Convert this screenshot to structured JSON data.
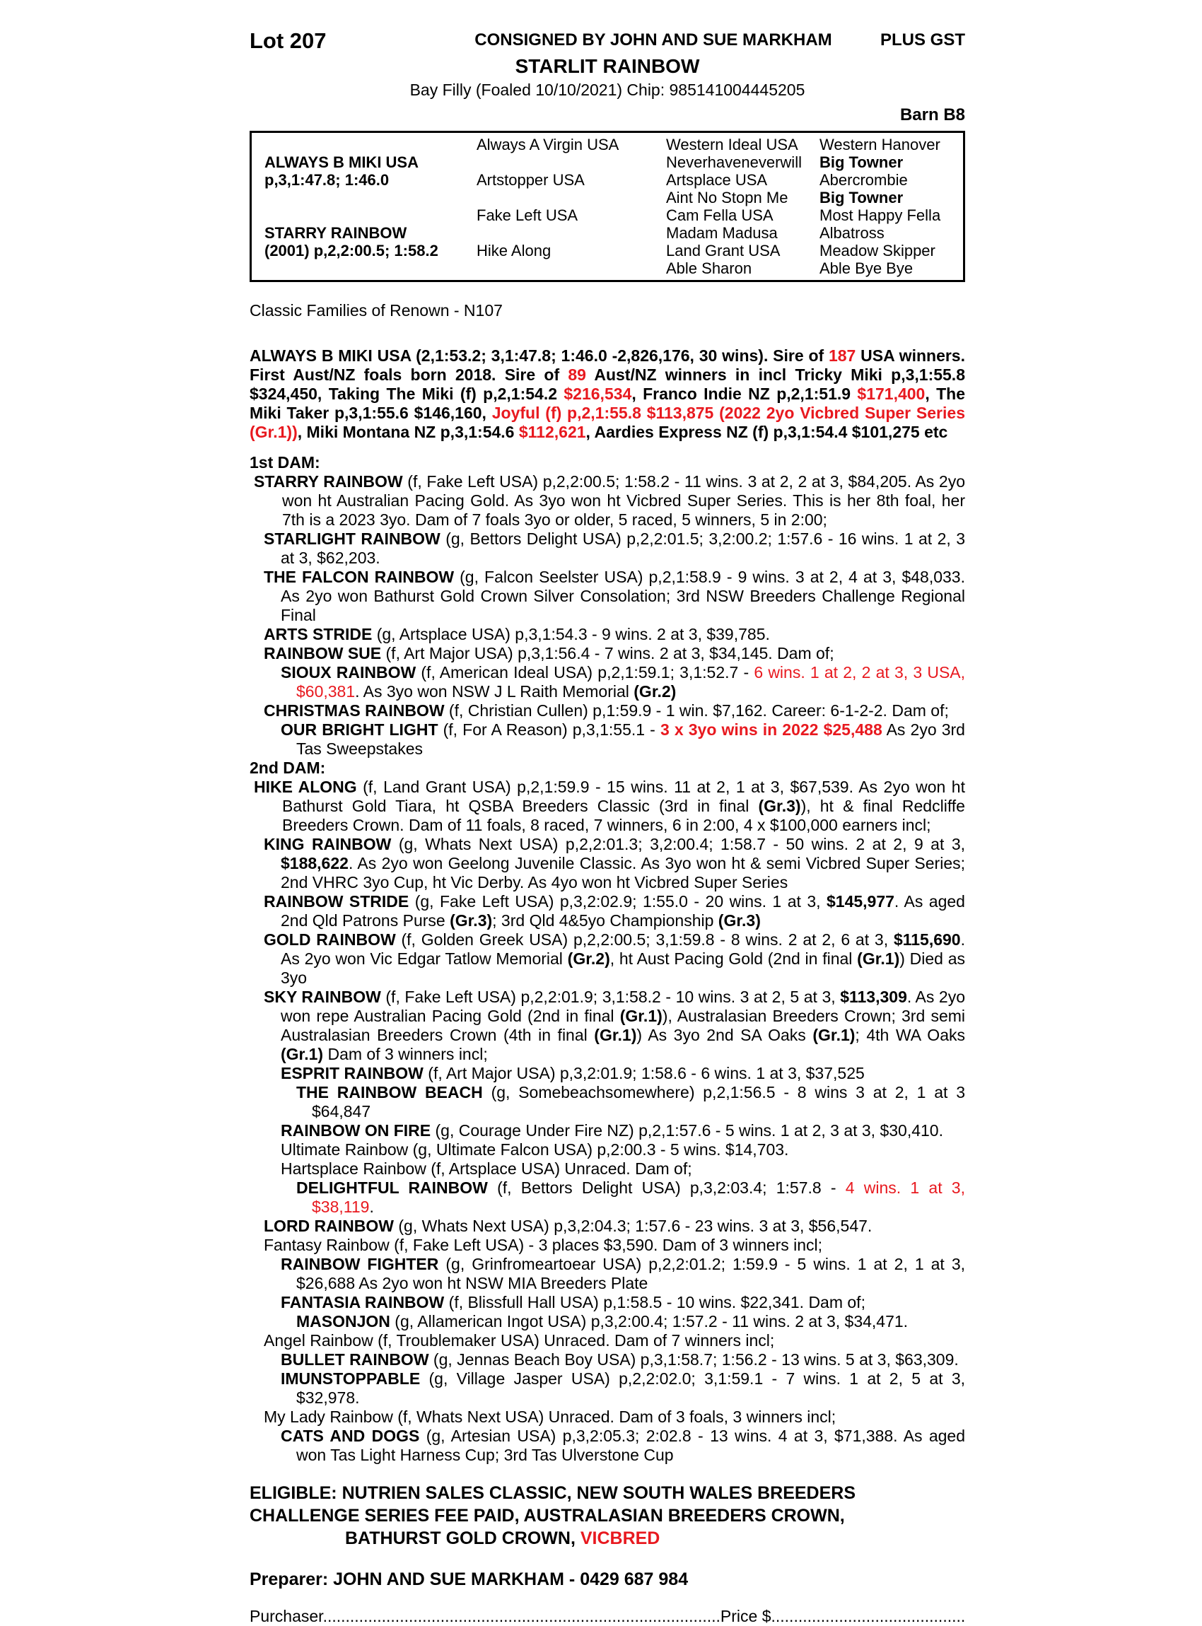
{
  "colors": {
    "red": "#e8191f",
    "ink": "#000000"
  },
  "header": {
    "lot": "Lot 207",
    "consigned": "CONSIGNED BY JOHN AND SUE MARKHAM",
    "plus_gst": "PLUS GST",
    "horse_name": "STARLIT RAINBOW",
    "foaling": "Bay Filly (Foaled 10/10/2021) Chip: 985141004445205",
    "barn": "Barn B8"
  },
  "pedigree": {
    "rows": [
      [
        {
          "t": "",
          "b": false
        },
        {
          "t": "Always A Virgin USA",
          "b": false
        },
        {
          "t": "Western Ideal USA",
          "b": false
        },
        {
          "t": "Western Hanover",
          "b": false
        }
      ],
      [
        {
          "t": "ALWAYS B MIKI USA",
          "b": true
        },
        {
          "t": "",
          "b": false
        },
        {
          "t": "Neverhaveneverwill",
          "b": false
        },
        {
          "t": "Big Towner",
          "b": true
        }
      ],
      [
        {
          "t": "p,3,1:47.8; 1:46.0",
          "b": true
        },
        {
          "t": "Artstopper USA",
          "b": false
        },
        {
          "t": "Artsplace USA",
          "b": false
        },
        {
          "t": "Abercrombie",
          "b": false
        }
      ],
      [
        {
          "t": "",
          "b": false
        },
        {
          "t": "",
          "b": false
        },
        {
          "t": "Aint No Stopn Me",
          "b": false
        },
        {
          "t": "Big Towner",
          "b": true
        }
      ],
      [
        {
          "t": "",
          "b": false
        },
        {
          "t": "Fake Left USA",
          "b": false
        },
        {
          "t": "Cam Fella USA",
          "b": false
        },
        {
          "t": "Most Happy Fella",
          "b": false
        }
      ],
      [
        {
          "t": "STARRY RAINBOW",
          "b": true
        },
        {
          "t": "",
          "b": false
        },
        {
          "t": "Madam Madusa",
          "b": false
        },
        {
          "t": "Albatross",
          "b": false
        }
      ],
      [
        {
          "t": "(2001) p,2,2:00.5; 1:58.2",
          "b": true
        },
        {
          "t": "Hike Along",
          "b": false
        },
        {
          "t": "Land Grant USA",
          "b": false
        },
        {
          "t": "Meadow Skipper",
          "b": false
        }
      ],
      [
        {
          "t": "",
          "b": false
        },
        {
          "t": "",
          "b": false
        },
        {
          "t": "Able Sharon",
          "b": false
        },
        {
          "t": "Able Bye Bye",
          "b": false
        }
      ]
    ]
  },
  "family_note": "Classic Families of Renown - N107",
  "sire_paragraph": [
    [
      "ALWAYS B MIKI USA (2,1:53.2; 3,1:47.8; 1:46.0 -2,826,176, 30 wins). Sire of ",
      "b"
    ],
    [
      "187",
      "br"
    ],
    [
      " USA winners. First Aust/NZ foals born 2018. Sire of ",
      "b"
    ],
    [
      "89",
      "br"
    ],
    [
      " Aust/NZ winners in incl Tricky Miki p,3,1:55.8 $324,450, Taking The Miki (f) p,2,1:54.2 ",
      "b"
    ],
    [
      "$216,534",
      "br"
    ],
    [
      ", Franco Indie NZ p,2,1:51.9 ",
      "b"
    ],
    [
      "$171,400",
      "br"
    ],
    [
      ", The Miki Taker p,3,1:55.6 $146,160, ",
      "b"
    ],
    [
      "Joyful (f) p,2,1:55.8 $113,875 (2022 2yo Vicbred Super Series (Gr.1))",
      "br"
    ],
    [
      ", Miki Montana NZ p,3,1:54.6 ",
      "b"
    ],
    [
      "$112,621",
      "br"
    ],
    [
      ", Aardies Express NZ (f) p,3,1:54.4 $101,275 etc",
      "b"
    ]
  ],
  "entries": [
    {
      "indent": 0,
      "segments": [
        [
          "1st DAM:",
          "b"
        ]
      ]
    },
    {
      "indent": 1,
      "segments": [
        [
          "STARRY RAINBOW",
          "b"
        ],
        [
          " (f, Fake Left USA) p,2,2:00.5; 1:58.2 - 11 wins. 3 at 2, 2 at 3, $84,205. As 2yo won ht Australian Pacing Gold. As 3yo won ht Vicbred Super Series. This is her 8th foal, her 7th is a 2023 3yo. Dam of 7 foals 3yo or older, 5 raced, 5 winners, 5 in 2:00;",
          ""
        ]
      ]
    },
    {
      "indent": 2,
      "segments": [
        [
          "STARLIGHT RAINBOW",
          "b"
        ],
        [
          " (g, Bettors Delight USA) p,2,2:01.5; 3,2:00.2; 1:57.6 - 16 wins. 1 at 2, 3 at 3, $62,203.",
          ""
        ]
      ]
    },
    {
      "indent": 2,
      "segments": [
        [
          "THE FALCON RAINBOW",
          "b"
        ],
        [
          " (g, Falcon Seelster USA) p,2,1:58.9 - 9 wins. 3 at 2, 4 at 3, $48,033. As 2yo won Bathurst Gold Crown Silver Consolation; 3rd NSW Breeders Challenge Regional Final",
          ""
        ]
      ]
    },
    {
      "indent": 2,
      "segments": [
        [
          "ARTS STRIDE",
          "b"
        ],
        [
          " (g, Artsplace USA) p,3,1:54.3 - 9 wins. 2 at 3, $39,785.",
          ""
        ]
      ]
    },
    {
      "indent": 2,
      "segments": [
        [
          "RAINBOW SUE",
          "b"
        ],
        [
          " (f, Art Major USA) p,3,1:56.4 - 7 wins. 2 at 3, $34,145. Dam of;",
          ""
        ]
      ]
    },
    {
      "indent": 3,
      "segments": [
        [
          "SIOUX RAINBOW",
          "b"
        ],
        [
          " (f, American Ideal USA) p,2,1:59.1; 3,1:52.7 - ",
          ""
        ],
        [
          "6 wins. 1 at 2, 2 at 3, 3 USA, $60,381",
          "r"
        ],
        [
          ". As 3yo won NSW J L Raith Memorial ",
          ""
        ],
        [
          "(Gr.2)",
          "b"
        ]
      ]
    },
    {
      "indent": 2,
      "segments": [
        [
          "CHRISTMAS RAINBOW",
          "b"
        ],
        [
          " (f, Christian Cullen) p,1:59.9 - 1 win. $7,162. Career: 6-1-2-2. Dam of;",
          ""
        ]
      ]
    },
    {
      "indent": 3,
      "segments": [
        [
          "OUR BRIGHT LIGHT",
          "b"
        ],
        [
          " (f, For A Reason) p,3,1:55.1 - ",
          ""
        ],
        [
          "3 x 3yo wins in 2022 ",
          "br"
        ],
        [
          "$25,488",
          "br"
        ],
        [
          " As 2yo 3rd Tas Sweepstakes",
          ""
        ]
      ]
    },
    {
      "indent": 0,
      "segments": [
        [
          "2nd DAM:",
          "b"
        ]
      ]
    },
    {
      "indent": 1,
      "segments": [
        [
          "HIKE ALONG",
          "b"
        ],
        [
          " (f, Land Grant USA) p,2,1:59.9 - 15 wins. 11 at 2, 1 at 3, $67,539. As 2yo won ht Bathurst Gold Tiara, ht QSBA Breeders Classic (3rd in final ",
          ""
        ],
        [
          "(Gr.3)",
          "b"
        ],
        [
          "), ht & final Redcliffe Breeders Crown. Dam of 11 foals, 8 raced, 7 winners, 6 in 2:00, 4 x $100,000 earners incl;",
          ""
        ]
      ]
    },
    {
      "indent": 2,
      "segments": [
        [
          "KING RAINBOW",
          "b"
        ],
        [
          " (g, Whats Next USA) p,2,2:01.3; 3,2:00.4; 1:58.7 - 50 wins. 2 at 2, 9 at 3, ",
          ""
        ],
        [
          "$188,622",
          "b"
        ],
        [
          ". As 2yo won Geelong Juvenile Classic. As 3yo won ht & semi Vicbred Super Series; 2nd VHRC 3yo Cup, ht Vic Derby. As 4yo won ht Vicbred Super Series",
          ""
        ]
      ]
    },
    {
      "indent": 2,
      "segments": [
        [
          "RAINBOW STRIDE",
          "b"
        ],
        [
          " (g, Fake Left USA) p,3,2:02.9; 1:55.0 - 20 wins. 1 at 3, ",
          ""
        ],
        [
          "$145,977",
          "b"
        ],
        [
          ". As aged 2nd Qld Patrons Purse ",
          ""
        ],
        [
          "(Gr.3)",
          "b"
        ],
        [
          "; 3rd Qld 4&5yo Championship ",
          ""
        ],
        [
          "(Gr.3)",
          "b"
        ]
      ]
    },
    {
      "indent": 2,
      "segments": [
        [
          "GOLD RAINBOW",
          "b"
        ],
        [
          " (f, Golden Greek USA) p,2,2:00.5; 3,1:59.8 - 8 wins. 2 at 2, 6 at 3, ",
          ""
        ],
        [
          "$115,690",
          "b"
        ],
        [
          ". As 2yo won Vic Edgar Tatlow Memorial ",
          ""
        ],
        [
          "(Gr.2)",
          "b"
        ],
        [
          ", ht Aust Pacing Gold (2nd in final ",
          ""
        ],
        [
          "(Gr.1)",
          "b"
        ],
        [
          ") Died as 3yo",
          ""
        ]
      ]
    },
    {
      "indent": 2,
      "segments": [
        [
          "SKY RAINBOW",
          "b"
        ],
        [
          " (f, Fake Left USA) p,2,2:01.9; 3,1:58.2 - 10 wins. 3 at 2, 5 at 3, ",
          ""
        ],
        [
          "$113,309",
          "b"
        ],
        [
          ". As 2yo won repe Australian Pacing Gold (2nd in final ",
          ""
        ],
        [
          "(Gr.1)",
          "b"
        ],
        [
          "), Australasian Breeders Crown; 3rd semi Australasian Breeders Crown (4th in final ",
          ""
        ],
        [
          "(Gr.1)",
          "b"
        ],
        [
          ") As 3yo 2nd SA Oaks ",
          ""
        ],
        [
          "(Gr.1)",
          "b"
        ],
        [
          "; 4th WA Oaks ",
          ""
        ],
        [
          "(Gr.1)",
          "b"
        ],
        [
          " Dam of 3 winners incl;",
          ""
        ]
      ]
    },
    {
      "indent": 3,
      "segments": [
        [
          "ESPRIT RAINBOW",
          "b"
        ],
        [
          " (f, Art Major USA) p,3,2:01.9; 1:58.6 - 6 wins. 1 at 3, $37,525",
          ""
        ]
      ]
    },
    {
      "indent": 4,
      "segments": [
        [
          "THE RAINBOW BEACH",
          "b"
        ],
        [
          " (g, Somebeachsomewhere) p,2,1:56.5 - 8 wins 3 at 2, 1 at 3 $64,847",
          ""
        ]
      ]
    },
    {
      "indent": 3,
      "segments": [
        [
          "RAINBOW ON FIRE",
          "b"
        ],
        [
          " (g, Courage Under Fire NZ) p,2,1:57.6 - 5 wins. 1 at 2, 3 at 3, $30,410.",
          ""
        ]
      ]
    },
    {
      "indent": 3,
      "segments": [
        [
          "Ultimate Rainbow (g, Ultimate Falcon USA) p,2:00.3 - 5 wins. $14,703.",
          ""
        ]
      ]
    },
    {
      "indent": 3,
      "segments": [
        [
          "Hartsplace Rainbow (f, Artsplace USA) Unraced. Dam of;",
          ""
        ]
      ]
    },
    {
      "indent": 4,
      "segments": [
        [
          "DELIGHTFUL RAINBOW",
          "b"
        ],
        [
          " (f, Bettors Delight USA) p,3,2:03.4; 1:57.8 - ",
          ""
        ],
        [
          "4 wins. 1 at 3, $38,119",
          "r"
        ],
        [
          ".",
          ""
        ]
      ]
    },
    {
      "indent": 2,
      "segments": [
        [
          "LORD RAINBOW",
          "b"
        ],
        [
          " (g, Whats Next USA) p,3,2:04.3; 1:57.6 - 23 wins. 3 at 3, $56,547.",
          ""
        ]
      ]
    },
    {
      "indent": 2,
      "segments": [
        [
          "Fantasy Rainbow (f, Fake Left USA) - 3 places $3,590. Dam of 3 winners incl;",
          ""
        ]
      ]
    },
    {
      "indent": 3,
      "segments": [
        [
          "RAINBOW FIGHTER",
          "b"
        ],
        [
          " (g, Grinfromeartoear USA) p,2,2:01.2; 1:59.9 - 5 wins. 1 at 2, 1 at 3, $26,688 As 2yo won ht NSW MIA Breeders Plate",
          ""
        ]
      ]
    },
    {
      "indent": 3,
      "segments": [
        [
          "FANTASIA RAINBOW",
          "b"
        ],
        [
          " (f, Blissfull Hall USA) p,1:58.5 - 10 wins. $22,341. Dam of;",
          ""
        ]
      ]
    },
    {
      "indent": 4,
      "segments": [
        [
          "MASONJON",
          "b"
        ],
        [
          " (g, Allamerican Ingot USA) p,3,2:00.4; 1:57.2 - 11 wins. 2 at 3, $34,471.",
          ""
        ]
      ]
    },
    {
      "indent": 2,
      "segments": [
        [
          "Angel Rainbow (f, Troublemaker USA) Unraced. Dam of 7 winners incl;",
          ""
        ]
      ]
    },
    {
      "indent": 3,
      "segments": [
        [
          "BULLET RAINBOW",
          "b"
        ],
        [
          " (g, Jennas Beach Boy USA) p,3,1:58.7; 1:56.2 - 13 wins. 5 at 3, $63,309.",
          ""
        ]
      ]
    },
    {
      "indent": 3,
      "segments": [
        [
          "IMUNSTOPPABLE",
          "b"
        ],
        [
          " (g, Village Jasper USA) p,2,2:02.0; 3,1:59.1 - 7 wins. 1 at 2, 5 at 3, $32,978.",
          ""
        ]
      ]
    },
    {
      "indent": 2,
      "segments": [
        [
          "My Lady Rainbow (f, Whats Next USA) Unraced. Dam of 3 foals, 3 winners incl;",
          ""
        ]
      ]
    },
    {
      "indent": 3,
      "segments": [
        [
          "CATS AND DOGS",
          "b"
        ],
        [
          " (g, Artesian USA) p,3,2:05.3; 2:02.8 - 13 wins. 4 at 3, $71,388. As aged won Tas Light Harness Cup; 3rd Tas Ulverstone Cup",
          ""
        ]
      ]
    }
  ],
  "eligible": {
    "label": "ELIGIBLE: ",
    "lines": [
      [
        [
          "NUTRIEN SALES CLASSIC, NEW SOUTH WALES BREEDERS",
          ""
        ]
      ],
      [
        [
          "CHALLENGE SERIES FEE PAID, AUSTRALASIAN BREEDERS CROWN,",
          ""
        ]
      ],
      [
        [
          "BATHURST GOLD CROWN, ",
          ""
        ],
        [
          "VICBRED",
          "r"
        ]
      ]
    ]
  },
  "preparer": "Preparer: JOHN AND SUE MARKHAM - 0429 687 984",
  "purchase": {
    "purchaser_label": "Purchaser",
    "dots1": "........................................................................................",
    "price_label": "Price $",
    "dots2": "............................................"
  }
}
